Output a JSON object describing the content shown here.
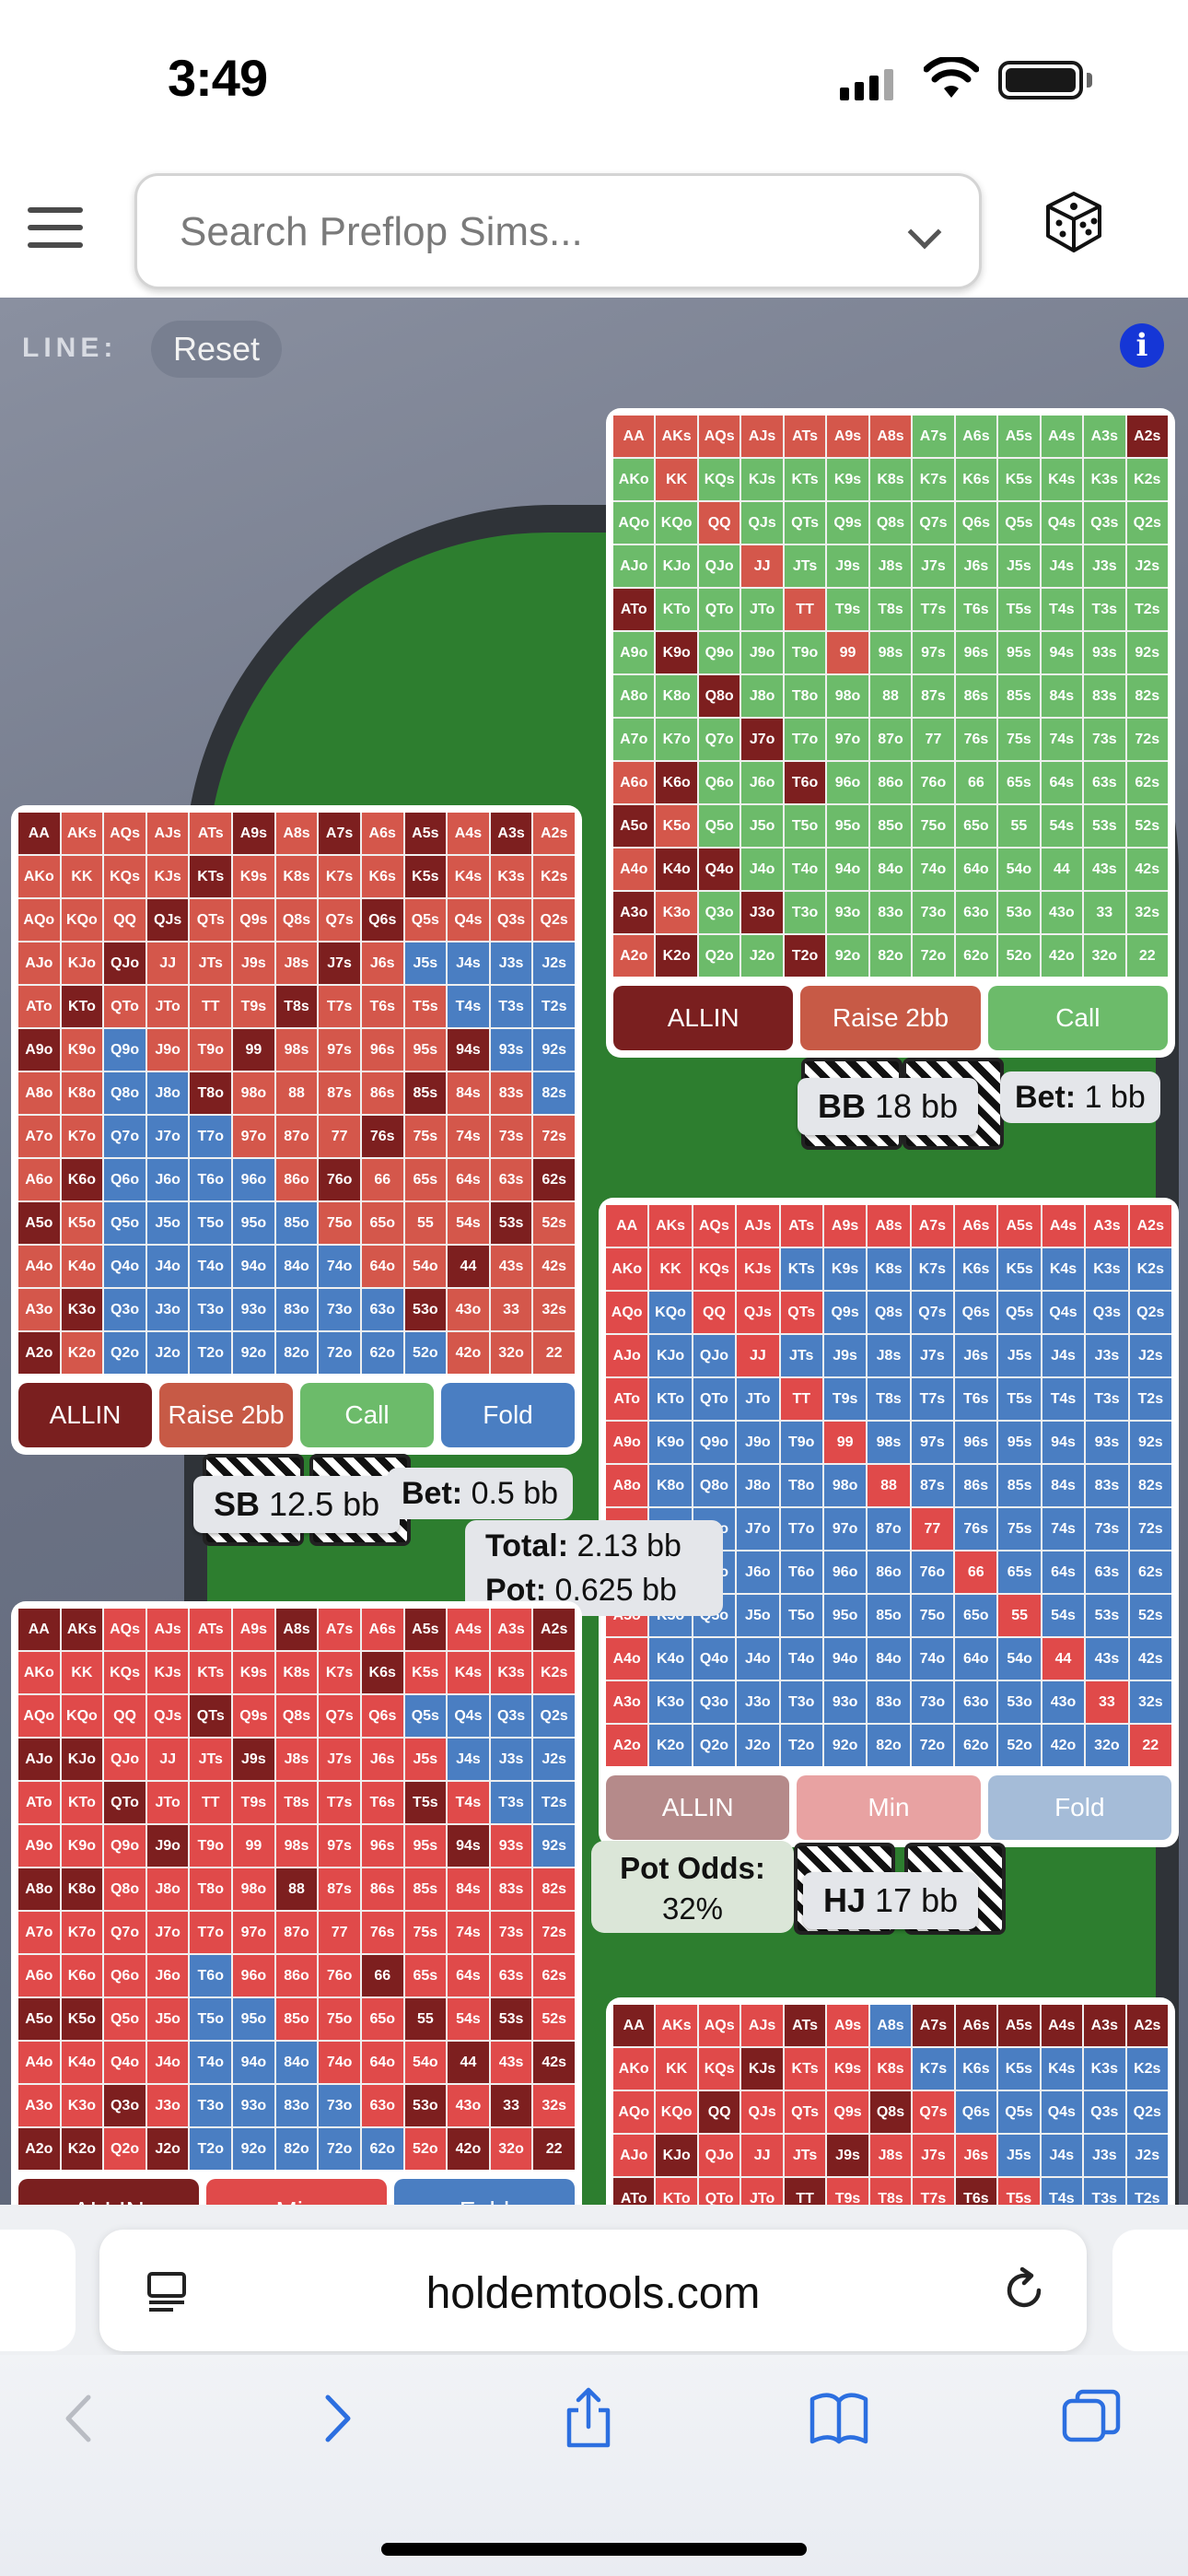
{
  "status_bar": {
    "time": "3:49"
  },
  "header": {
    "search_placeholder": "Search Preflop Sims..."
  },
  "line": {
    "label": "LINE:",
    "reset_label": "Reset",
    "info_label": "i"
  },
  "hands": [
    "AA",
    "AKs",
    "AQs",
    "AJs",
    "ATs",
    "A9s",
    "A8s",
    "A7s",
    "A6s",
    "A5s",
    "A4s",
    "A3s",
    "A2s",
    "AKo",
    "KK",
    "KQs",
    "KJs",
    "KTs",
    "K9s",
    "K8s",
    "K7s",
    "K6s",
    "K5s",
    "K4s",
    "K3s",
    "K2s",
    "AQo",
    "KQo",
    "QQ",
    "QJs",
    "QTs",
    "Q9s",
    "Q8s",
    "Q7s",
    "Q6s",
    "Q5s",
    "Q4s",
    "Q3s",
    "Q2s",
    "AJo",
    "KJo",
    "QJo",
    "JJ",
    "JTs",
    "J9s",
    "J8s",
    "J7s",
    "J6s",
    "J5s",
    "J4s",
    "J3s",
    "J2s",
    "ATo",
    "KTo",
    "QTo",
    "JTo",
    "TT",
    "T9s",
    "T8s",
    "T7s",
    "T6s",
    "T5s",
    "T4s",
    "T3s",
    "T2s",
    "A9o",
    "K9o",
    "Q9o",
    "J9o",
    "T9o",
    "99",
    "98s",
    "97s",
    "96s",
    "95s",
    "94s",
    "93s",
    "92s",
    "A8o",
    "K8o",
    "Q8o",
    "J8o",
    "T8o",
    "98o",
    "88",
    "87s",
    "86s",
    "85s",
    "84s",
    "83s",
    "82s",
    "A7o",
    "K7o",
    "Q7o",
    "J7o",
    "T7o",
    "97o",
    "87o",
    "77",
    "76s",
    "75s",
    "74s",
    "73s",
    "72s",
    "A6o",
    "K6o",
    "Q6o",
    "J6o",
    "T6o",
    "96o",
    "86o",
    "76o",
    "66",
    "65s",
    "64s",
    "63s",
    "62s",
    "A5o",
    "K5o",
    "Q5o",
    "J5o",
    "T5o",
    "95o",
    "85o",
    "75o",
    "65o",
    "55",
    "54s",
    "53s",
    "52s",
    "A4o",
    "K4o",
    "Q4o",
    "J4o",
    "T4o",
    "94o",
    "84o",
    "74o",
    "64o",
    "54o",
    "44",
    "43s",
    "42s",
    "A3o",
    "K3o",
    "Q3o",
    "J3o",
    "T3o",
    "93o",
    "83o",
    "73o",
    "63o",
    "53o",
    "43o",
    "33",
    "32s",
    "A2o",
    "K2o",
    "Q2o",
    "J2o",
    "T2o",
    "92o",
    "82o",
    "72o",
    "62o",
    "52o",
    "42o",
    "32o",
    "22"
  ],
  "panels": {
    "bb": {
      "actions": [
        {
          "label": "ALLIN",
          "color": "#7a1f1f"
        },
        {
          "label": "Raise 2bb",
          "color": "#c75a46"
        },
        {
          "label": "Call",
          "color": "#6cbb6a"
        }
      ]
    },
    "sb": {
      "actions": [
        {
          "label": "ALLIN",
          "color": "#7a1f1f"
        },
        {
          "label": "Raise 2bb",
          "color": "#c75a46"
        },
        {
          "label": "Call",
          "color": "#6cbb6a"
        },
        {
          "label": "Fold",
          "color": "#4a7ec2"
        }
      ]
    },
    "hj": {
      "actions": [
        {
          "label": "ALLIN",
          "color": "#b58a8a"
        },
        {
          "label": "Min",
          "color": "#e8a2a2"
        },
        {
          "label": "Fold",
          "color": "#a5bcd8"
        }
      ]
    },
    "bottom_left": {
      "actions": [
        {
          "label": "ALLIN",
          "color": "#7a1f1f"
        },
        {
          "label": "Min",
          "color": "#e04a4a"
        },
        {
          "label": "Fold",
          "color": "#4a7ec2"
        }
      ]
    }
  },
  "seats": {
    "bb": {
      "name": "BB",
      "stack": "18 bb"
    },
    "sb": {
      "name": "SB",
      "stack": "12.5 bb"
    },
    "hj": {
      "name": "HJ",
      "stack": "17 bb"
    }
  },
  "bets": {
    "bb": {
      "label": "Bet:",
      "value": "1 bb"
    },
    "sb": {
      "label": "Bet:",
      "value": "0.5 bb"
    }
  },
  "pot": {
    "total_label": "Total:",
    "total_value": "2.13 bb",
    "pot_label": "Pot:",
    "pot_value": "0.625 bb"
  },
  "pot_odds": {
    "label": "Pot Odds:",
    "value": "32%"
  },
  "browser": {
    "url": "holdemtools.com"
  }
}
